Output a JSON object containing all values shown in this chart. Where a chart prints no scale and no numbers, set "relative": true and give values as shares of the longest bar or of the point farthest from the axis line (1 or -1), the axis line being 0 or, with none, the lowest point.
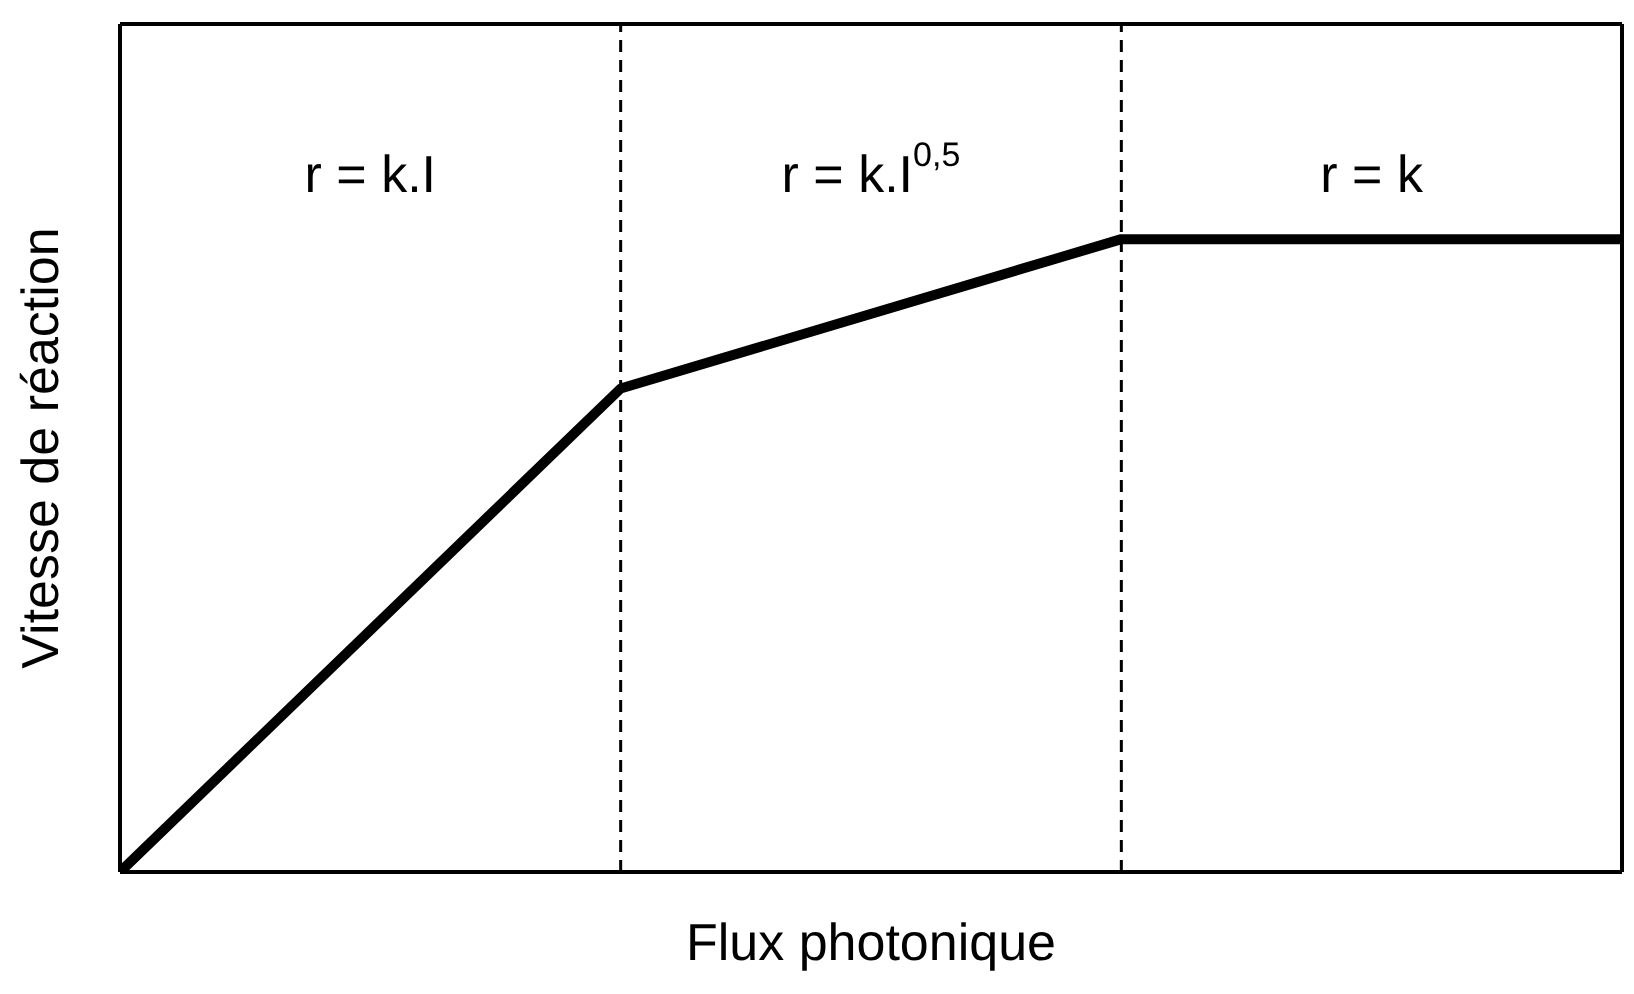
{
  "chart_data": {
    "type": "line",
    "xlabel": "Flux photonique",
    "ylabel": "Vitesse de réaction",
    "categories": [
      null,
      null,
      null,
      null
    ],
    "relative": true,
    "series": [
      {
        "color": "#000000",
        "values": [
          0,
          0.764,
          1,
          1
        ]
      }
    ],
    "annotations": [
      "r = k.I",
      "r = k.I$^{0,5}$",
      "r = k"
    ],
    "marker": "none",
    "line_style": "solid"
  }
}
